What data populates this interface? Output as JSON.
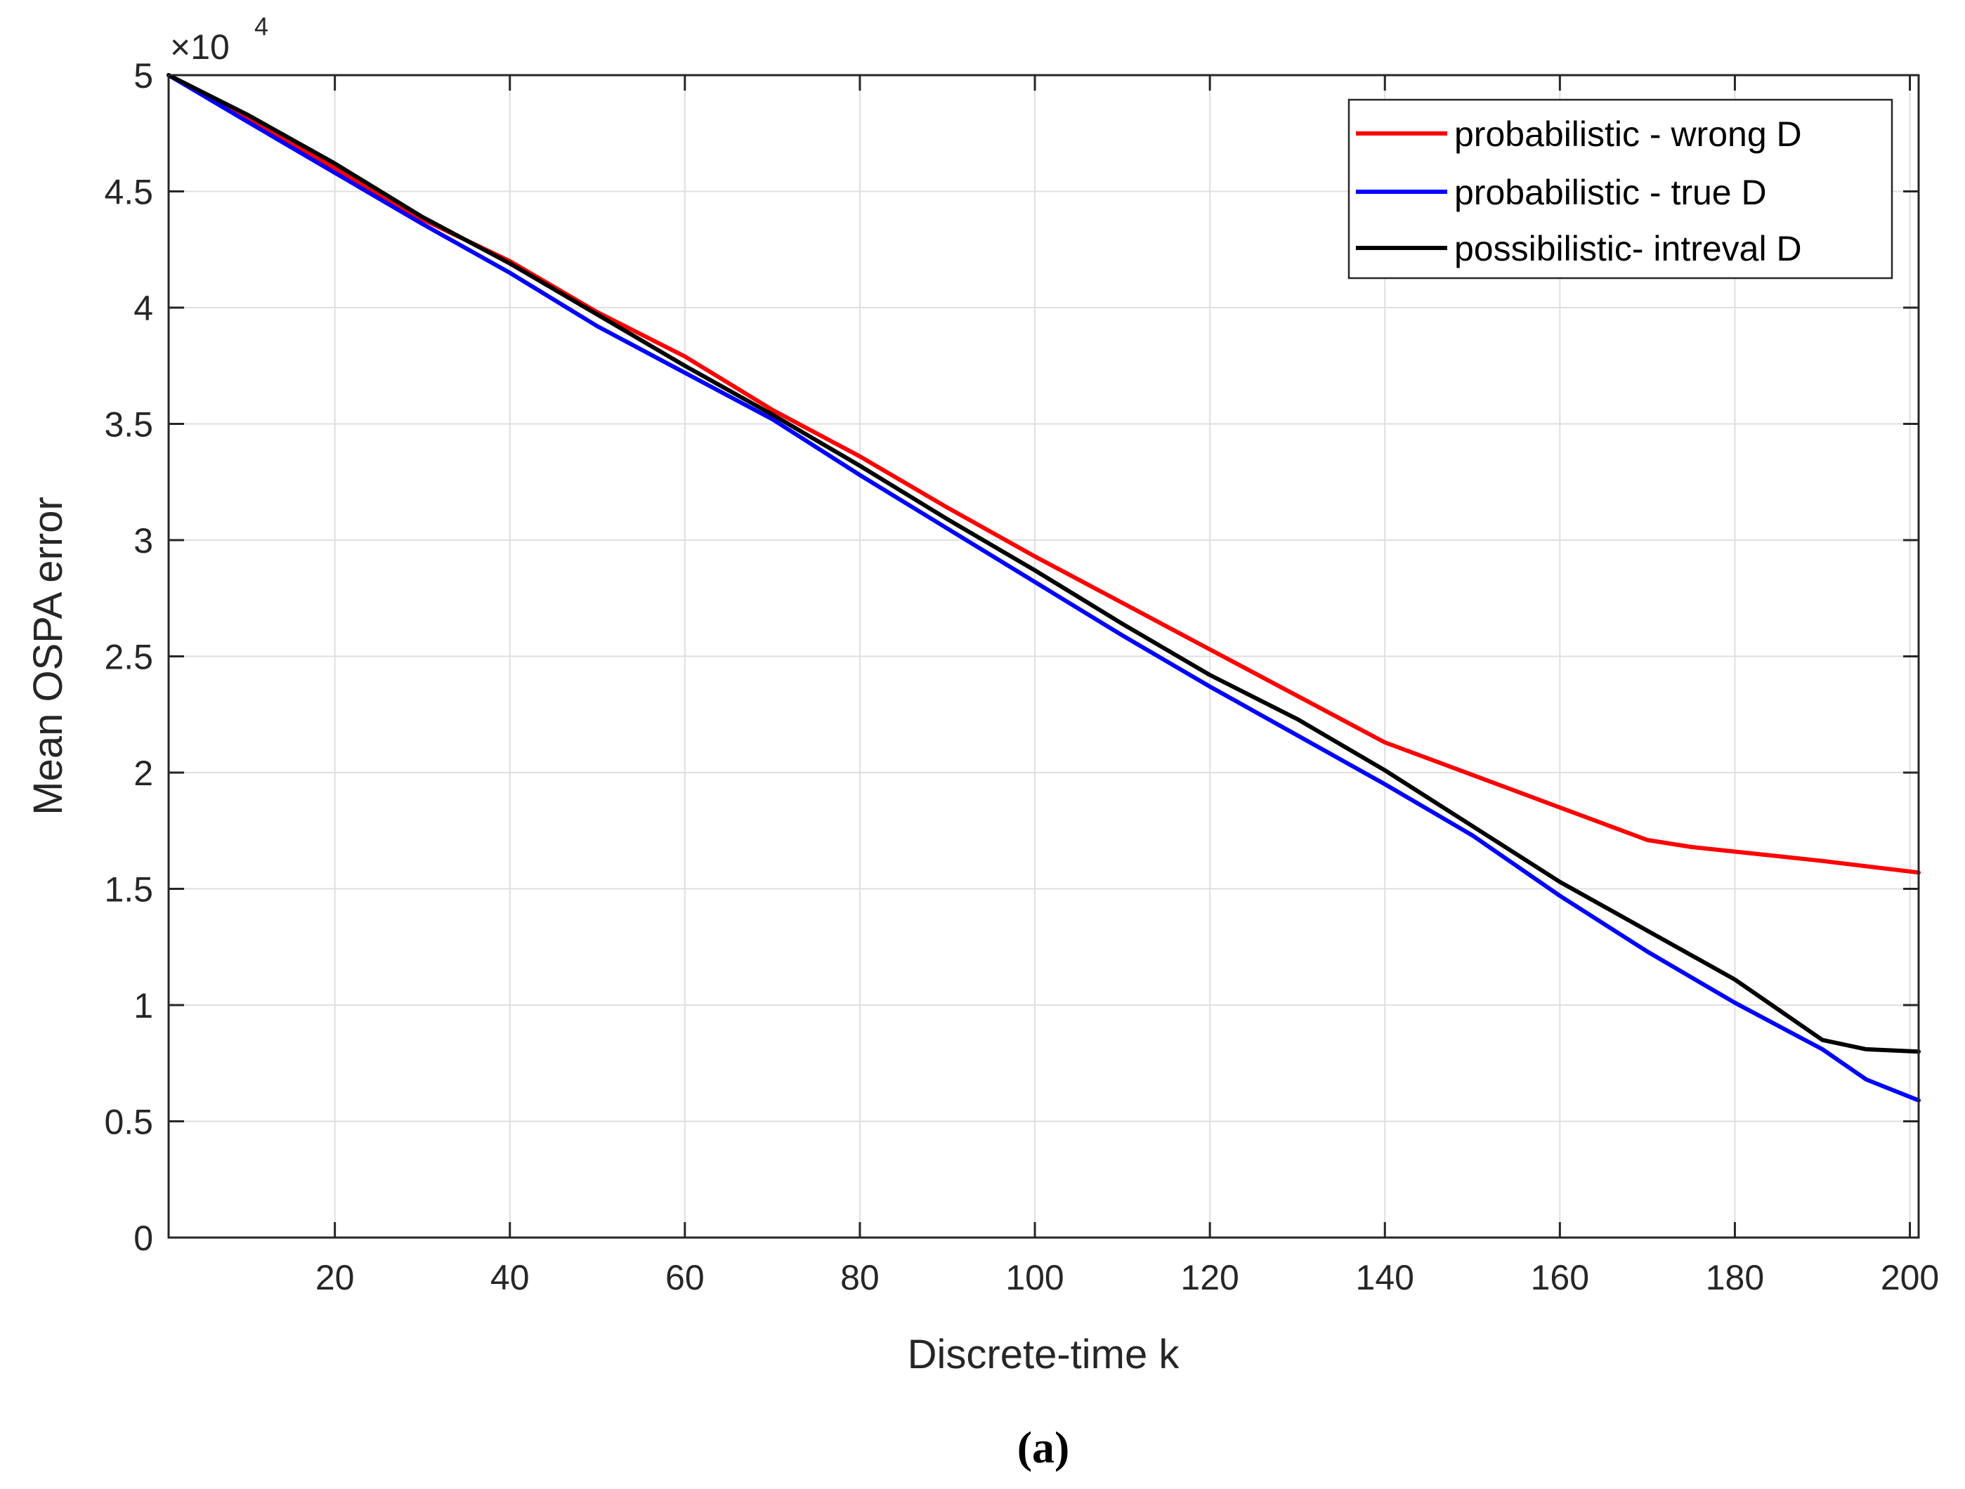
{
  "chart_data": {
    "type": "line",
    "title": "",
    "xlabel": "Discrete-time k",
    "ylabel": "Mean OSPA error",
    "xlim": [
      1,
      201
    ],
    "ylim": [
      0,
      50000
    ],
    "y_exponent_label": "×10",
    "y_exponent_power": "4",
    "x_ticks": [
      20,
      40,
      60,
      80,
      100,
      120,
      140,
      160,
      180,
      200
    ],
    "x_tick_labels": [
      "20",
      "40",
      "60",
      "80",
      "100",
      "120",
      "140",
      "160",
      "180",
      "200"
    ],
    "y_ticks": [
      0,
      5000,
      10000,
      15000,
      20000,
      25000,
      30000,
      35000,
      40000,
      45000,
      50000
    ],
    "y_tick_labels": [
      "0",
      "0.5",
      "1",
      "1.5",
      "2",
      "2.5",
      "3",
      "3.5",
      "4",
      "4.5",
      "5"
    ],
    "grid": true,
    "legend_position": "top-right",
    "caption": "(a)",
    "series": [
      {
        "name": "probabilistic - wrong D",
        "color": "#ff0000",
        "x": [
          1,
          10,
          20,
          30,
          40,
          50,
          60,
          70,
          80,
          90,
          100,
          110,
          120,
          130,
          140,
          150,
          160,
          170,
          175,
          180,
          190,
          201
        ],
        "values": [
          50000,
          48200,
          46000,
          43800,
          42000,
          39800,
          37900,
          35600,
          33600,
          31400,
          29300,
          27300,
          25300,
          23300,
          21300,
          19900,
          18500,
          17100,
          16800,
          16600,
          16200,
          15700
        ]
      },
      {
        "name": "probabilistic - true D",
        "color": "#0000ff",
        "x": [
          1,
          10,
          20,
          30,
          40,
          50,
          60,
          70,
          80,
          90,
          100,
          110,
          120,
          130,
          140,
          150,
          160,
          170,
          180,
          190,
          195,
          201
        ],
        "values": [
          50000,
          48000,
          45800,
          43600,
          41500,
          39200,
          37200,
          35200,
          32800,
          30500,
          28200,
          25900,
          23700,
          21600,
          19500,
          17300,
          14700,
          12300,
          10100,
          8100,
          6800,
          5900
        ]
      },
      {
        "name": "possibilistic- intreval D",
        "color": "#000000",
        "x": [
          1,
          10,
          20,
          30,
          40,
          50,
          60,
          70,
          80,
          90,
          100,
          110,
          120,
          130,
          140,
          150,
          160,
          170,
          180,
          190,
          195,
          201
        ],
        "values": [
          50000,
          48300,
          46200,
          43900,
          41900,
          39700,
          37500,
          35400,
          33200,
          30900,
          28700,
          26400,
          24200,
          22300,
          20100,
          17700,
          15300,
          13200,
          11100,
          8500,
          8100,
          8000
        ]
      }
    ]
  }
}
